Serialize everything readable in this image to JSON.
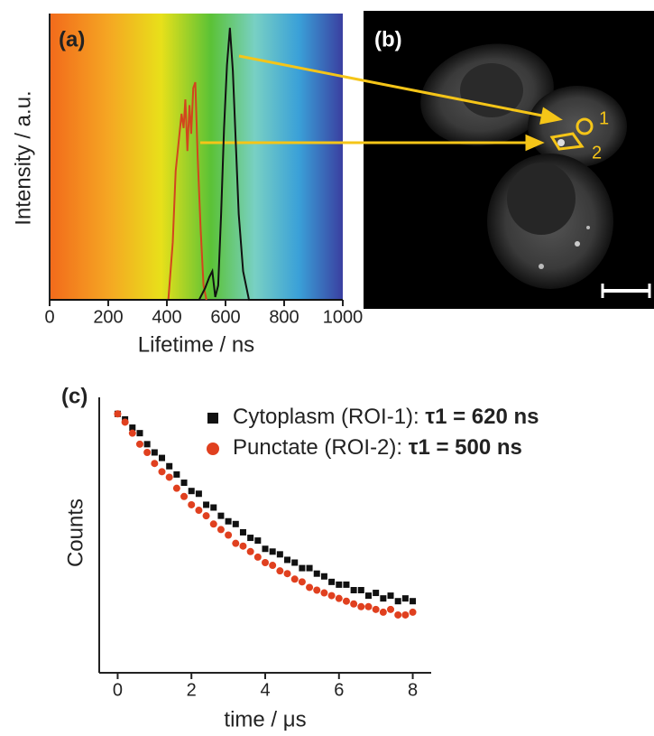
{
  "chart_data": [
    {
      "type": "line",
      "panel_label": "(a)",
      "x_label": "Lifetime / ns",
      "y_label": "Intensity / a.u.",
      "xlim": [
        0,
        1000
      ],
      "xticks": [
        0,
        200,
        400,
        600,
        800,
        1000
      ],
      "ylim": [
        0,
        100
      ],
      "series": [
        {
          "color": "#d2451e",
          "x": [
            405,
            420,
            430,
            440,
            450,
            457,
            463,
            470,
            477,
            483,
            490,
            497,
            505,
            515,
            525,
            535
          ],
          "values": [
            0,
            20,
            45,
            55,
            65,
            60,
            70,
            52,
            68,
            58,
            74,
            76,
            50,
            25,
            5,
            0
          ]
        },
        {
          "color": "#111111",
          "x": [
            0,
            510,
            530,
            545,
            555,
            565,
            575,
            585,
            595,
            605,
            615,
            625,
            635,
            645,
            660,
            680,
            1000
          ],
          "values": [
            0,
            0,
            4,
            8,
            10,
            1,
            5,
            30,
            60,
            82,
            95,
            80,
            55,
            30,
            10,
            0,
            0
          ]
        }
      ]
    },
    {
      "type": "scatter",
      "panel_label": "(c)",
      "x_label": "time / μs",
      "y_label": "Counts",
      "xlim": [
        -0.5,
        8.5
      ],
      "xticks": [
        0,
        2,
        4,
        6,
        8
      ],
      "ylim": [
        0,
        100
      ],
      "x": [
        0,
        0.2,
        0.4,
        0.6,
        0.8,
        1,
        1.2,
        1.4,
        1.6,
        1.8,
        2,
        2.2,
        2.4,
        2.6,
        2.8,
        3,
        3.2,
        3.4,
        3.6,
        3.8,
        4,
        4.2,
        4.4,
        4.6,
        4.8,
        5,
        5.2,
        5.4,
        5.6,
        5.8,
        6,
        6.2,
        6.4,
        6.6,
        6.8,
        7,
        7.2,
        7.4,
        7.6,
        7.8,
        8
      ],
      "series": [
        {
          "name": "Cytoplasm (ROI-1): ",
          "annotation": "τ1 = 620 ns",
          "color": "#111111",
          "marker": "square",
          "values": [
            94,
            92,
            89,
            87,
            83,
            80,
            78,
            75,
            72,
            69,
            66,
            65,
            61,
            60,
            57,
            55,
            54,
            51,
            49,
            48,
            45,
            44,
            43,
            41,
            40,
            38,
            38,
            36,
            35,
            33,
            32,
            32,
            30,
            30,
            28,
            29,
            27,
            28,
            26,
            27,
            26
          ]
        },
        {
          "name": "Punctate (ROI-2): ",
          "annotation": "τ1 = 500 ns",
          "color": "#e0401f",
          "marker": "circle",
          "values": [
            94,
            91,
            87,
            83,
            80,
            76,
            73,
            71,
            67,
            64,
            61,
            59,
            57,
            54,
            52,
            50,
            47,
            46,
            44,
            42,
            40,
            39,
            37,
            36,
            34,
            33,
            31,
            30,
            29,
            28,
            27,
            26,
            25,
            24,
            24,
            23,
            22,
            23,
            21,
            21,
            22
          ]
        }
      ]
    }
  ],
  "image_panel": {
    "panel_label": "(b)",
    "roi_labels": [
      "1",
      "2"
    ]
  }
}
